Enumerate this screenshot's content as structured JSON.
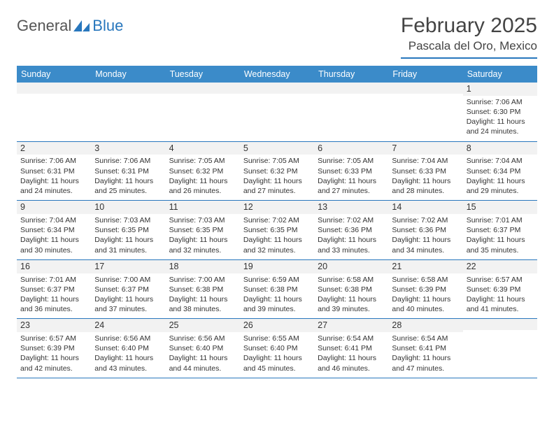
{
  "logo": {
    "textA": "General",
    "textB": "Blue"
  },
  "title": "February 2025",
  "location": "Pascala del Oro, Mexico",
  "colors": {
    "header_bg": "#3b8bc9",
    "border": "#2877bd",
    "alt_row": "#f2f2f2",
    "text": "#333333",
    "title_text": "#444444"
  },
  "fonts": {
    "base": "Arial",
    "title_size_pt": 22,
    "location_size_pt": 13,
    "day_header_pt": 9,
    "cell_pt": 8
  },
  "day_headers": [
    "Sunday",
    "Monday",
    "Tuesday",
    "Wednesday",
    "Thursday",
    "Friday",
    "Saturday"
  ],
  "weeks": [
    [
      {
        "n": "",
        "sr": "",
        "ss": "",
        "dl": ""
      },
      {
        "n": "",
        "sr": "",
        "ss": "",
        "dl": ""
      },
      {
        "n": "",
        "sr": "",
        "ss": "",
        "dl": ""
      },
      {
        "n": "",
        "sr": "",
        "ss": "",
        "dl": ""
      },
      {
        "n": "",
        "sr": "",
        "ss": "",
        "dl": ""
      },
      {
        "n": "",
        "sr": "",
        "ss": "",
        "dl": ""
      },
      {
        "n": "1",
        "sr": "Sunrise: 7:06 AM",
        "ss": "Sunset: 6:30 PM",
        "dl": "Daylight: 11 hours and 24 minutes."
      }
    ],
    [
      {
        "n": "2",
        "sr": "Sunrise: 7:06 AM",
        "ss": "Sunset: 6:31 PM",
        "dl": "Daylight: 11 hours and 24 minutes."
      },
      {
        "n": "3",
        "sr": "Sunrise: 7:06 AM",
        "ss": "Sunset: 6:31 PM",
        "dl": "Daylight: 11 hours and 25 minutes."
      },
      {
        "n": "4",
        "sr": "Sunrise: 7:05 AM",
        "ss": "Sunset: 6:32 PM",
        "dl": "Daylight: 11 hours and 26 minutes."
      },
      {
        "n": "5",
        "sr": "Sunrise: 7:05 AM",
        "ss": "Sunset: 6:32 PM",
        "dl": "Daylight: 11 hours and 27 minutes."
      },
      {
        "n": "6",
        "sr": "Sunrise: 7:05 AM",
        "ss": "Sunset: 6:33 PM",
        "dl": "Daylight: 11 hours and 27 minutes."
      },
      {
        "n": "7",
        "sr": "Sunrise: 7:04 AM",
        "ss": "Sunset: 6:33 PM",
        "dl": "Daylight: 11 hours and 28 minutes."
      },
      {
        "n": "8",
        "sr": "Sunrise: 7:04 AM",
        "ss": "Sunset: 6:34 PM",
        "dl": "Daylight: 11 hours and 29 minutes."
      }
    ],
    [
      {
        "n": "9",
        "sr": "Sunrise: 7:04 AM",
        "ss": "Sunset: 6:34 PM",
        "dl": "Daylight: 11 hours and 30 minutes."
      },
      {
        "n": "10",
        "sr": "Sunrise: 7:03 AM",
        "ss": "Sunset: 6:35 PM",
        "dl": "Daylight: 11 hours and 31 minutes."
      },
      {
        "n": "11",
        "sr": "Sunrise: 7:03 AM",
        "ss": "Sunset: 6:35 PM",
        "dl": "Daylight: 11 hours and 32 minutes."
      },
      {
        "n": "12",
        "sr": "Sunrise: 7:02 AM",
        "ss": "Sunset: 6:35 PM",
        "dl": "Daylight: 11 hours and 32 minutes."
      },
      {
        "n": "13",
        "sr": "Sunrise: 7:02 AM",
        "ss": "Sunset: 6:36 PM",
        "dl": "Daylight: 11 hours and 33 minutes."
      },
      {
        "n": "14",
        "sr": "Sunrise: 7:02 AM",
        "ss": "Sunset: 6:36 PM",
        "dl": "Daylight: 11 hours and 34 minutes."
      },
      {
        "n": "15",
        "sr": "Sunrise: 7:01 AM",
        "ss": "Sunset: 6:37 PM",
        "dl": "Daylight: 11 hours and 35 minutes."
      }
    ],
    [
      {
        "n": "16",
        "sr": "Sunrise: 7:01 AM",
        "ss": "Sunset: 6:37 PM",
        "dl": "Daylight: 11 hours and 36 minutes."
      },
      {
        "n": "17",
        "sr": "Sunrise: 7:00 AM",
        "ss": "Sunset: 6:37 PM",
        "dl": "Daylight: 11 hours and 37 minutes."
      },
      {
        "n": "18",
        "sr": "Sunrise: 7:00 AM",
        "ss": "Sunset: 6:38 PM",
        "dl": "Daylight: 11 hours and 38 minutes."
      },
      {
        "n": "19",
        "sr": "Sunrise: 6:59 AM",
        "ss": "Sunset: 6:38 PM",
        "dl": "Daylight: 11 hours and 39 minutes."
      },
      {
        "n": "20",
        "sr": "Sunrise: 6:58 AM",
        "ss": "Sunset: 6:38 PM",
        "dl": "Daylight: 11 hours and 39 minutes."
      },
      {
        "n": "21",
        "sr": "Sunrise: 6:58 AM",
        "ss": "Sunset: 6:39 PM",
        "dl": "Daylight: 11 hours and 40 minutes."
      },
      {
        "n": "22",
        "sr": "Sunrise: 6:57 AM",
        "ss": "Sunset: 6:39 PM",
        "dl": "Daylight: 11 hours and 41 minutes."
      }
    ],
    [
      {
        "n": "23",
        "sr": "Sunrise: 6:57 AM",
        "ss": "Sunset: 6:39 PM",
        "dl": "Daylight: 11 hours and 42 minutes."
      },
      {
        "n": "24",
        "sr": "Sunrise: 6:56 AM",
        "ss": "Sunset: 6:40 PM",
        "dl": "Daylight: 11 hours and 43 minutes."
      },
      {
        "n": "25",
        "sr": "Sunrise: 6:56 AM",
        "ss": "Sunset: 6:40 PM",
        "dl": "Daylight: 11 hours and 44 minutes."
      },
      {
        "n": "26",
        "sr": "Sunrise: 6:55 AM",
        "ss": "Sunset: 6:40 PM",
        "dl": "Daylight: 11 hours and 45 minutes."
      },
      {
        "n": "27",
        "sr": "Sunrise: 6:54 AM",
        "ss": "Sunset: 6:41 PM",
        "dl": "Daylight: 11 hours and 46 minutes."
      },
      {
        "n": "28",
        "sr": "Sunrise: 6:54 AM",
        "ss": "Sunset: 6:41 PM",
        "dl": "Daylight: 11 hours and 47 minutes."
      },
      {
        "n": "",
        "sr": "",
        "ss": "",
        "dl": ""
      }
    ]
  ]
}
